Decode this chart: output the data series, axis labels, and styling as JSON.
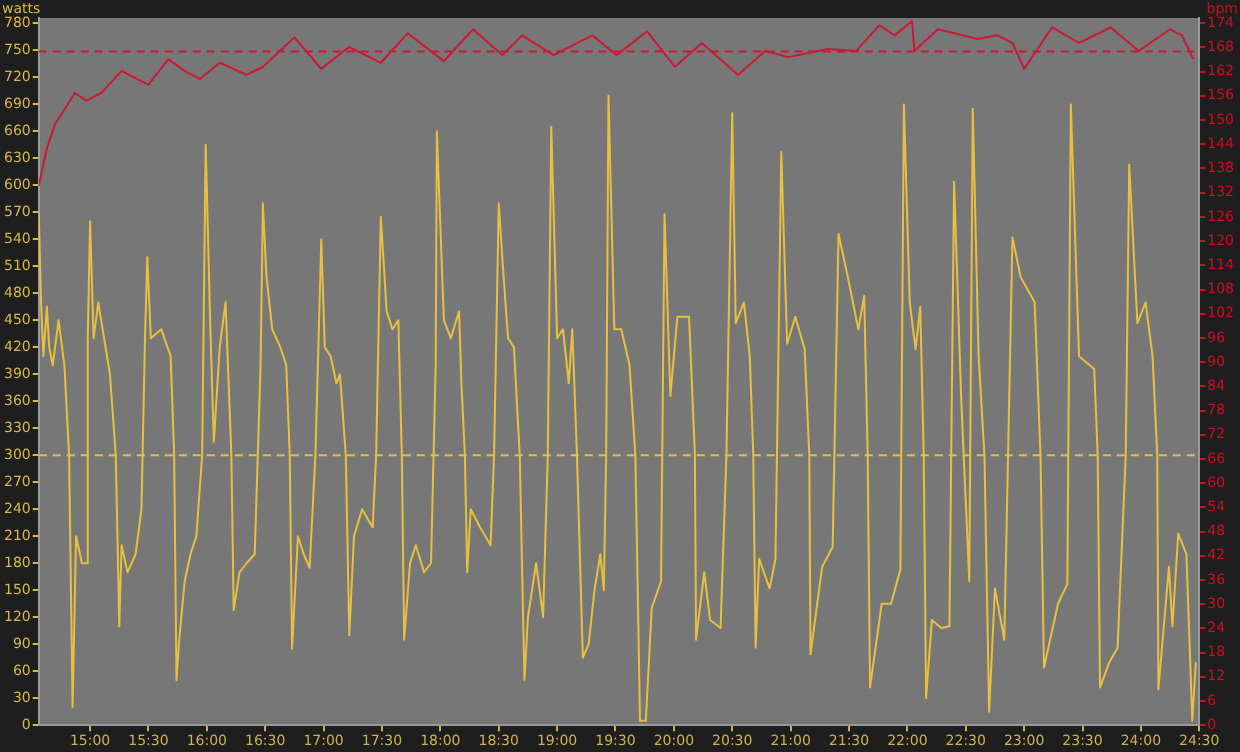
{
  "chart_data": {
    "type": "line",
    "ylabel": "watts",
    "y2label": "bpm",
    "grid": false,
    "legend": false,
    "marker": "none",
    "line_style": "solid",
    "xlim": [
      14.56,
      24.5
    ],
    "xticks": [
      {
        "value": 15,
        "label": "15:00"
      },
      {
        "value": 15.5,
        "label": "15:30"
      },
      {
        "value": 16,
        "label": "16:00"
      },
      {
        "value": 16.5,
        "label": "16:30"
      },
      {
        "value": 17,
        "label": "17:00"
      },
      {
        "value": 17.5,
        "label": "17:30"
      },
      {
        "value": 18,
        "label": "18:00"
      },
      {
        "value": 18.5,
        "label": "18:30"
      },
      {
        "value": 19,
        "label": "19:00"
      },
      {
        "value": 19.5,
        "label": "19:30"
      },
      {
        "value": 20,
        "label": "20:00"
      },
      {
        "value": 20.5,
        "label": "20:30"
      },
      {
        "value": 21,
        "label": "21:00"
      },
      {
        "value": 21.5,
        "label": "21:30"
      },
      {
        "value": 22,
        "label": "22:00"
      },
      {
        "value": 22.5,
        "label": "22:30"
      },
      {
        "value": 23,
        "label": "23:00"
      },
      {
        "value": 23.5,
        "label": "23:30"
      },
      {
        "value": 24,
        "label": "24:00"
      },
      {
        "value": 24.5,
        "label": "24:30"
      }
    ],
    "ylim": [
      0,
      786
    ],
    "yticks": [
      0,
      30,
      60,
      90,
      120,
      150,
      180,
      210,
      240,
      270,
      300,
      330,
      360,
      390,
      420,
      450,
      480,
      510,
      540,
      570,
      600,
      630,
      660,
      690,
      720,
      750,
      780
    ],
    "y2lim": [
      0,
      175.3
    ],
    "y2ticks": [
      0,
      6,
      12,
      18,
      24,
      30,
      36,
      42,
      48,
      54,
      60,
      66,
      72,
      78,
      84,
      90,
      96,
      102,
      108,
      114,
      120,
      126,
      132,
      138,
      144,
      150,
      156,
      162,
      168,
      174
    ],
    "series": [
      {
        "color": "#e8c040",
        "x": [
          14.56,
          14.58,
          14.6,
          14.63,
          14.65,
          14.68,
          14.73,
          14.78,
          14.82,
          14.85,
          14.88,
          14.93,
          14.97,
          14.98,
          15,
          15.03,
          15.07,
          15.12,
          15.17,
          15.22,
          15.25,
          15.27,
          15.32,
          15.39,
          15.44,
          15.47,
          15.49,
          15.52,
          15.61,
          15.69,
          15.72,
          15.74,
          15.76,
          15.81,
          15.86,
          15.91,
          15.96,
          15.99,
          16.03,
          16.06,
          16.11,
          16.16,
          16.21,
          16.23,
          16.28,
          16.34,
          16.41,
          16.46,
          16.48,
          16.51,
          16.56,
          16.63,
          16.68,
          16.71,
          16.73,
          16.78,
          16.83,
          16.88,
          16.93,
          16.98,
          17.01,
          17.06,
          17.11,
          17.14,
          17.19,
          17.22,
          17.26,
          17.33,
          17.42,
          17.45,
          17.49,
          17.54,
          17.59,
          17.64,
          17.67,
          17.69,
          17.74,
          17.79,
          17.86,
          17.92,
          17.96,
          17.97,
          18.03,
          18.09,
          18.16,
          18.18,
          18.21,
          18.23,
          18.26,
          18.34,
          18.43,
          18.46,
          18.5,
          18.53,
          18.58,
          18.63,
          18.68,
          18.72,
          18.75,
          18.82,
          18.88,
          18.92,
          18.95,
          19,
          19.05,
          19.1,
          19.13,
          19.17,
          19.22,
          19.27,
          19.32,
          19.37,
          19.4,
          19.42,
          19.44,
          19.49,
          19.55,
          19.62,
          19.67,
          19.71,
          19.76,
          19.81,
          19.89,
          19.92,
          19.97,
          20.03,
          20.13,
          20.18,
          20.19,
          20.26,
          20.31,
          20.4,
          20.45,
          20.5,
          20.53,
          20.6,
          20.65,
          20.68,
          20.7,
          20.73,
          20.82,
          20.87,
          20.92,
          20.97,
          21.04,
          21.12,
          21.16,
          21.17,
          21.27,
          21.36,
          21.41,
          21.49,
          21.58,
          21.63,
          21.66,
          21.68,
          21.78,
          21.86,
          21.94,
          21.97,
          22.02,
          22.07,
          22.11,
          22.14,
          22.16,
          22.21,
          22.29,
          22.36,
          22.4,
          22.46,
          22.53,
          22.56,
          22.61,
          22.66,
          22.7,
          22.75,
          22.83,
          22.9,
          22.97,
          23.09,
          23.14,
          23.17,
          23.29,
          23.37,
          23.4,
          23.47,
          23.6,
          23.63,
          23.65,
          23.73,
          23.8,
          23.87,
          23.9,
          23.97,
          24.04,
          24.1,
          24.14,
          24.15,
          24.24,
          24.27,
          24.32,
          24.39,
          24.44,
          24.47
        ],
        "values": [
          570,
          470,
          410,
          465,
          420,
          400,
          450,
          400,
          300,
          20,
          210,
          180,
          180,
          430,
          560,
          430,
          470,
          430,
          390,
          300,
          110,
          200,
          170,
          190,
          240,
          430,
          520,
          430,
          440,
          410,
          300,
          50,
          90,
          160,
          190,
          210,
          300,
          645,
          440,
          315,
          420,
          470,
          300,
          128,
          170,
          180,
          190,
          400,
          580,
          500,
          440,
          420,
          400,
          300,
          85,
          210,
          190,
          175,
          300,
          540,
          420,
          410,
          380,
          390,
          300,
          100,
          210,
          240,
          220,
          300,
          565,
          460,
          440,
          450,
          300,
          95,
          180,
          200,
          170,
          180,
          400,
          660,
          450,
          430,
          460,
          380,
          300,
          170,
          240,
          220,
          200,
          300,
          580,
          520,
          430,
          420,
          300,
          50,
          120,
          180,
          120,
          300,
          665,
          430,
          440,
          380,
          440,
          300,
          75,
          90,
          150,
          190,
          150,
          300,
          700,
          440,
          440,
          400,
          300,
          5,
          5,
          130,
          160,
          568,
          366,
          454,
          454,
          300,
          95,
          170,
          117,
          108,
          300,
          680,
          447,
          470,
          410,
          300,
          86,
          185,
          152,
          185,
          637,
          424,
          454,
          418,
          300,
          79,
          176,
          198,
          546,
          498,
          440,
          477,
          300,
          42,
          135,
          135,
          173,
          690,
          470,
          418,
          465,
          300,
          30,
          117,
          108,
          110,
          604,
          366,
          160,
          685,
          410,
          300,
          15,
          152,
          95,
          542,
          498,
          470,
          300,
          64,
          135,
          157,
          690,
          410,
          396,
          300,
          42,
          70,
          86,
          300,
          623,
          447,
          470,
          410,
          300,
          40,
          176,
          110,
          213,
          190,
          5,
          70
        ]
      },
      {
        "color": "#cc1830",
        "axis": "y2",
        "x": [
          14.56,
          14.63,
          14.7,
          14.73,
          14.87,
          14.97,
          15.1,
          15.27,
          15.4,
          15.5,
          15.67,
          15.81,
          15.94,
          16.11,
          16.34,
          16.48,
          16.75,
          16.98,
          17.22,
          17.49,
          17.72,
          18.03,
          18.28,
          18.53,
          18.7,
          18.97,
          19.3,
          19.51,
          19.77,
          20.01,
          20.24,
          20.55,
          20.78,
          20.98,
          21.32,
          21.56,
          21.76,
          21.89,
          22.04,
          22.06,
          22.26,
          22.6,
          22.77,
          22.9,
          23,
          23.24,
          23.47,
          23.74,
          23.98,
          24.25,
          24.35,
          24.45
        ],
        "values": [
          133.7,
          143,
          149,
          150.4,
          156.7,
          154.8,
          156.8,
          162.2,
          160.2,
          158.8,
          165.1,
          162.2,
          160.2,
          164.2,
          161.2,
          163.2,
          170.5,
          162.7,
          168.1,
          164.2,
          171.5,
          164.6,
          172.5,
          166.1,
          171,
          166.1,
          171,
          166.1,
          172,
          163.2,
          169.1,
          161.2,
          167.1,
          165.6,
          167.6,
          167.1,
          173.5,
          171,
          174.5,
          167.1,
          172.5,
          170.1,
          171,
          169.1,
          162.7,
          173,
          169.1,
          173,
          167.1,
          172.5,
          171,
          165.1
        ]
      }
    ],
    "ref_lines": [
      {
        "axis": "y",
        "value": 300,
        "color": "#e8c040",
        "line_style": "dashed"
      },
      {
        "axis": "y2",
        "value": 167,
        "color": "#cc1830",
        "line_style": "dashed"
      }
    ]
  }
}
